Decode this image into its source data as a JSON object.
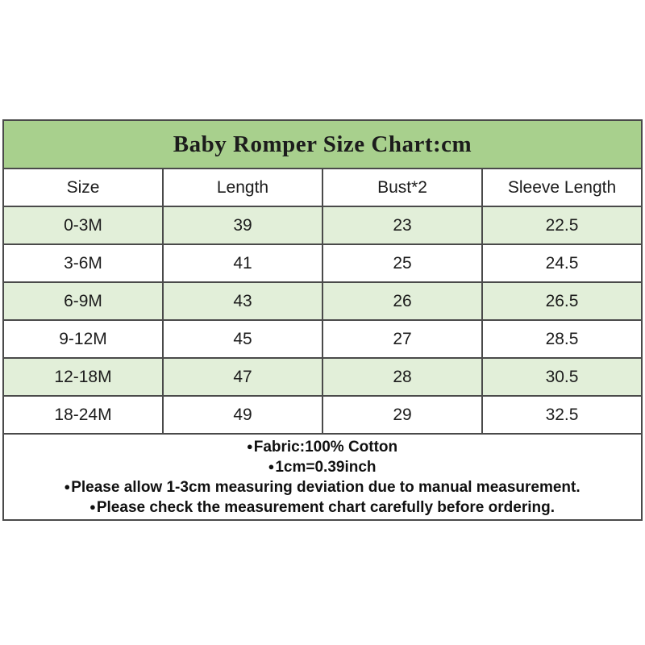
{
  "chart_data": {
    "type": "table",
    "title": "Baby Romper Size Chart:cm",
    "units": "cm",
    "columns": [
      "Size",
      "Length",
      "Bust*2",
      "Sleeve Length"
    ],
    "rows": [
      [
        "0-3M",
        "39",
        "23",
        "22.5"
      ],
      [
        "3-6M",
        "41",
        "25",
        "24.5"
      ],
      [
        "6-9M",
        "43",
        "26",
        "26.5"
      ],
      [
        "9-12M",
        "45",
        "27",
        "28.5"
      ],
      [
        "12-18M",
        "47",
        "28",
        "30.5"
      ],
      [
        "18-24M",
        "49",
        "29",
        "32.5"
      ]
    ],
    "notes": [
      "Fabric:100% Cotton",
      "1cm=0.39inch",
      "Please allow 1-3cm measuring deviation due to manual measurement.",
      "Please check the measurement chart carefully before ordering."
    ]
  },
  "bullet": "●",
  "colors": {
    "title_bg": "#A8D08D",
    "stripe_bg": "#E2EFD9",
    "border": "#4a4a4a",
    "text": "#1c1c1c"
  }
}
